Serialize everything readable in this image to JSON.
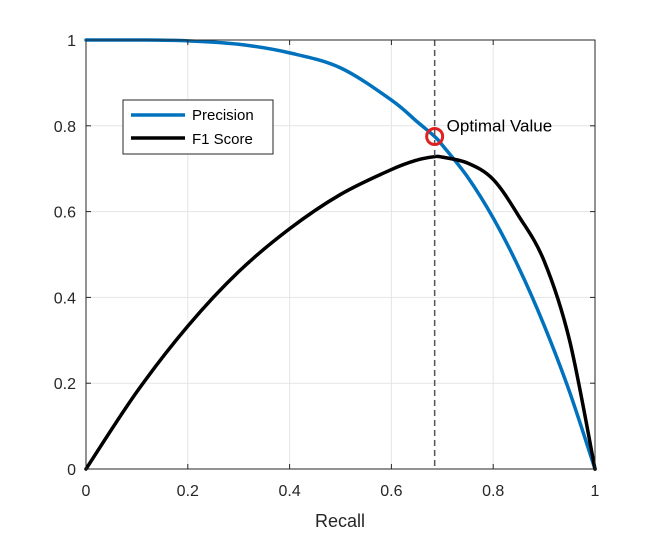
{
  "chart_data": {
    "type": "line",
    "xlabel": "Recall",
    "ylabel": "",
    "xlim": [
      0,
      1
    ],
    "ylim": [
      0,
      1
    ],
    "grid": true,
    "x_ticks": [
      "0",
      "0.2",
      "0.4",
      "0.6",
      "0.8",
      "1"
    ],
    "y_ticks": [
      "0",
      "0.2",
      "0.4",
      "0.6",
      "0.8",
      "1"
    ],
    "legend": {
      "placement": "upper-left"
    },
    "series": [
      {
        "name": "Precision",
        "color": "#0072BD",
        "x": [
          0,
          0.1,
          0.2,
          0.3,
          0.4,
          0.5,
          0.6,
          0.65,
          0.685,
          0.7,
          0.75,
          0.8,
          0.85,
          0.9,
          0.95,
          1
        ],
        "y": [
          1,
          1,
          0.998,
          0.99,
          0.97,
          0.935,
          0.86,
          0.81,
          0.775,
          0.755,
          0.68,
          0.585,
          0.47,
          0.335,
          0.18,
          0
        ]
      },
      {
        "name": "F1 Score",
        "color": "#000000",
        "x": [
          0,
          0.1,
          0.2,
          0.3,
          0.4,
          0.5,
          0.6,
          0.65,
          0.685,
          0.7,
          0.75,
          0.8,
          0.85,
          0.9,
          0.95,
          1
        ],
        "y": [
          0,
          0.18,
          0.333,
          0.46,
          0.56,
          0.64,
          0.698,
          0.72,
          0.728,
          0.727,
          0.713,
          0.675,
          0.59,
          0.485,
          0.3,
          0
        ]
      }
    ],
    "vline": {
      "x": 0.685,
      "style": "dashed",
      "color": "#555555"
    },
    "marker": {
      "x": 0.685,
      "y": 0.775,
      "color": "#E0201E"
    },
    "annotation": {
      "text": "Optimal Value",
      "x": 0.685,
      "y": 0.775
    }
  }
}
